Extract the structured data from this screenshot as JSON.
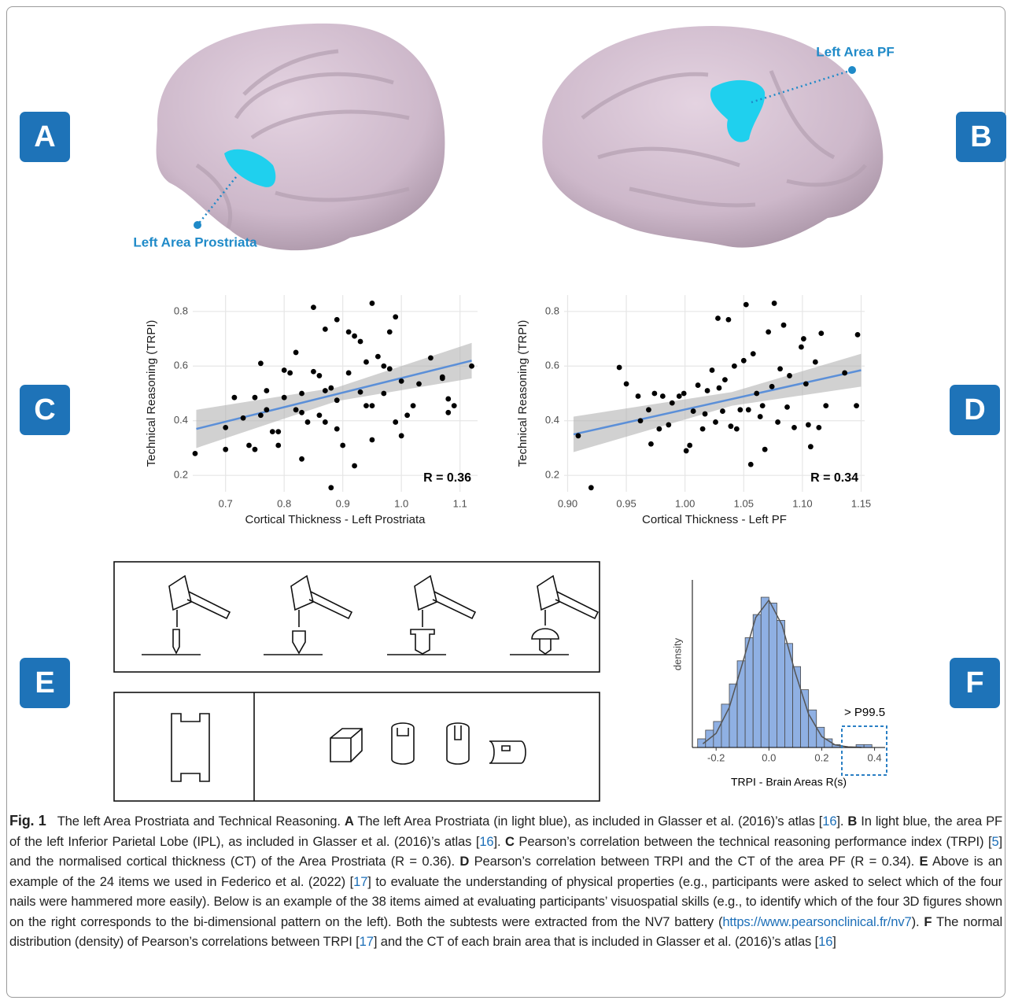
{
  "panel_labels": [
    "A",
    "B",
    "C",
    "D",
    "E",
    "F"
  ],
  "brain_labels": {
    "prostriata": "Left Area Prostriata",
    "pf": "Left Area PF"
  },
  "chart_data": [
    {
      "type": "scatter",
      "y_label": "Technical Reasoning (TRPI)",
      "x_label": "Cortical Thickness - Left Prostriata",
      "annotation": "R = 0.36",
      "xlim": [
        0.644,
        1.13
      ],
      "ylim": [
        0.14,
        0.86
      ],
      "xticks": [
        0.7,
        0.8,
        0.9,
        {
          "value": 1,
          "label": "1.0"
        },
        1.1
      ],
      "yticks": [
        0.2,
        0.4,
        0.6,
        0.8
      ],
      "grid": true,
      "color": "#000000",
      "fit_color": "#5b8fd8",
      "band_color": "#b3b3b3",
      "x": [
        0.648,
        0.7,
        0.7,
        0.715,
        0.73,
        0.74,
        0.75,
        0.75,
        0.76,
        0.76,
        0.77,
        0.77,
        0.78,
        0.79,
        0.79,
        0.8,
        0.8,
        0.81,
        0.82,
        0.82,
        0.83,
        0.83,
        0.83,
        0.84,
        0.85,
        0.85,
        0.86,
        0.86,
        0.87,
        0.87,
        0.87,
        0.88,
        0.88,
        0.89,
        0.89,
        0.89,
        0.9,
        0.91,
        0.91,
        0.92,
        0.92,
        0.93,
        0.93,
        0.94,
        0.94,
        0.95,
        0.95,
        0.95,
        0.96,
        0.97,
        0.97,
        0.98,
        0.98,
        0.99,
        0.99,
        1.0,
        1.0,
        1.01,
        1.02,
        1.03,
        1.05,
        1.07,
        1.07,
        1.08,
        1.08,
        1.09,
        1.12
      ],
      "values": [
        0.28,
        0.375,
        0.295,
        0.485,
        0.41,
        0.31,
        0.295,
        0.485,
        0.42,
        0.61,
        0.44,
        0.51,
        0.36,
        0.31,
        0.36,
        0.585,
        0.485,
        0.575,
        0.65,
        0.44,
        0.26,
        0.43,
        0.5,
        0.395,
        0.58,
        0.815,
        0.42,
        0.565,
        0.51,
        0.735,
        0.395,
        0.52,
        0.155,
        0.37,
        0.77,
        0.475,
        0.31,
        0.575,
        0.725,
        0.235,
        0.71,
        0.505,
        0.69,
        0.455,
        0.615,
        0.455,
        0.83,
        0.33,
        0.635,
        0.5,
        0.6,
        0.725,
        0.59,
        0.395,
        0.78,
        0.345,
        0.545,
        0.42,
        0.455,
        0.535,
        0.63,
        0.56,
        0.555,
        0.43,
        0.48,
        0.455,
        0.6
      ],
      "fit": {
        "x": [
          0.65,
          1.12
        ],
        "values": [
          0.37,
          0.62
        ]
      },
      "ci": {
        "x": [
          0.65,
          0.89,
          1.12
        ],
        "lower": [
          0.3,
          0.472,
          0.555
        ],
        "upper": [
          0.44,
          0.522,
          0.685
        ]
      }
    },
    {
      "type": "scatter",
      "y_label": "Technical Reasoning (TRPI)",
      "x_label": "Cortical Thickness - Left PF",
      "annotation": "R = 0.34",
      "xlim": [
        0.897,
        1.153
      ],
      "ylim": [
        0.14,
        0.86
      ],
      "xticks": [
        {
          "value": 0.9,
          "label": "0.90"
        },
        0.95,
        {
          "value": 1,
          "label": "1.00"
        },
        1.05,
        {
          "value": 1.1,
          "label": "1.10"
        },
        1.15
      ],
      "yticks": [
        0.2,
        0.4,
        0.6,
        0.8
      ],
      "grid": true,
      "color": "#000000",
      "fit_color": "#5b8fd8",
      "band_color": "#b3b3b3",
      "x": [
        0.909,
        0.92,
        0.944,
        0.95,
        0.96,
        0.962,
        0.969,
        0.971,
        0.974,
        0.978,
        0.981,
        0.986,
        0.989,
        0.995,
        0.999,
        1.001,
        1.004,
        1.007,
        1.011,
        1.015,
        1.017,
        1.019,
        1.023,
        1.026,
        1.028,
        1.029,
        1.032,
        1.034,
        1.037,
        1.039,
        1.042,
        1.044,
        1.047,
        1.05,
        1.052,
        1.054,
        1.056,
        1.058,
        1.061,
        1.064,
        1.066,
        1.068,
        1.071,
        1.074,
        1.076,
        1.079,
        1.081,
        1.084,
        1.087,
        1.089,
        1.093,
        1.099,
        1.101,
        1.103,
        1.105,
        1.107,
        1.111,
        1.114,
        1.116,
        1.12,
        1.136,
        1.146,
        1.147
      ],
      "values": [
        0.345,
        0.155,
        0.595,
        0.535,
        0.49,
        0.4,
        0.44,
        0.315,
        0.5,
        0.37,
        0.49,
        0.385,
        0.465,
        0.49,
        0.5,
        0.29,
        0.31,
        0.435,
        0.53,
        0.37,
        0.425,
        0.51,
        0.585,
        0.395,
        0.775,
        0.52,
        0.435,
        0.55,
        0.77,
        0.38,
        0.6,
        0.37,
        0.44,
        0.62,
        0.825,
        0.44,
        0.24,
        0.645,
        0.5,
        0.415,
        0.455,
        0.295,
        0.725,
        0.525,
        0.83,
        0.395,
        0.59,
        0.75,
        0.45,
        0.565,
        0.375,
        0.67,
        0.7,
        0.535,
        0.385,
        0.305,
        0.615,
        0.375,
        0.72,
        0.455,
        0.575,
        0.455,
        0.715
      ],
      "fit": {
        "x": [
          0.905,
          1.15
        ],
        "values": [
          0.35,
          0.585
        ]
      },
      "ci": {
        "x": [
          0.905,
          1.04,
          1.15
        ],
        "lower": [
          0.285,
          0.455,
          0.525
        ],
        "upper": [
          0.415,
          0.505,
          0.645
        ]
      }
    },
    {
      "type": "histogram",
      "y_label": "density",
      "x_label": "TRPI - Brain Areas R(s)",
      "annotation": "> P99.5",
      "xlim": [
        -0.29,
        0.44
      ],
      "ylim": [
        0,
        58
      ],
      "xticks": [
        -0.2,
        {
          "value": 0,
          "label": "0.0"
        },
        0.2,
        0.4
      ],
      "color": "#8fb0e3",
      "edge_color": "#4a4a4a",
      "curve_color": "#555555",
      "bins": [
        -0.27,
        -0.24,
        -0.21,
        -0.18,
        -0.15,
        -0.12,
        -0.09,
        -0.06,
        -0.03,
        0,
        0.03,
        0.06,
        0.09,
        0.12,
        0.15,
        0.18,
        0.21,
        0.24,
        0.27,
        0.3,
        0.33,
        0.36,
        0.39,
        0.42
      ],
      "values": [
        3,
        6,
        9,
        15,
        22,
        30,
        38,
        46,
        52,
        50,
        44,
        36,
        28,
        20,
        13,
        7,
        3,
        1,
        0,
        0,
        1,
        1,
        0
      ],
      "curve": {
        "x": [
          -0.25,
          -0.2,
          -0.15,
          -0.1,
          -0.05,
          0,
          0.05,
          0.1,
          0.15,
          0.2,
          0.25,
          0.3,
          0.35
        ],
        "values": [
          1.3,
          4.9,
          13.9,
          29.2,
          45,
          51,
          42.3,
          25.8,
          11.6,
          3.8,
          0.9,
          0.2,
          0.05
        ]
      }
    }
  ],
  "caption": {
    "runs": [
      {
        "text": "Fig. 1",
        "style": "label"
      },
      {
        "text": "The left Area Prostriata and Technical Reasoning. "
      },
      {
        "text": "A",
        "style": "bold"
      },
      {
        "text": " The left Area Prostriata (in light blue), as included in Glasser et al. (2016)’s atlas ["
      },
      {
        "text": "16",
        "style": "link"
      },
      {
        "text": "]. "
      },
      {
        "text": "B",
        "style": "bold"
      },
      {
        "text": " In light blue, the area PF of the left Inferior Parietal Lobe (IPL), as included in Glasser et al. (2016)’s atlas ["
      },
      {
        "text": "16",
        "style": "link"
      },
      {
        "text": "]. "
      },
      {
        "text": "C",
        "style": "bold"
      },
      {
        "text": " Pearson’s correlation between the technical reasoning performance index (TRPI) ["
      },
      {
        "text": "5",
        "style": "link"
      },
      {
        "text": "] and the normalised cortical thickness (CT) of the Area Prostriata (R = 0.36). "
      },
      {
        "text": "D",
        "style": "bold"
      },
      {
        "text": " Pearson’s correlation between TRPI and the CT of the area PF (R = 0.34). "
      },
      {
        "text": "E",
        "style": "bold"
      },
      {
        "text": " Above is an example of the 24 items we used in Federico et al. (2022) ["
      },
      {
        "text": "17",
        "style": "link"
      },
      {
        "text": "] to evaluate the understanding of physical properties (e.g., participants were asked to select which of the four nails were hammered more easily). Below is an example of the 38 items aimed at evaluating participants’ visuospatial skills (e.g., to identify which of the four 3D figures shown on the right corresponds to the bi-dimensional pattern on the left). Both the subtests were extracted from the NV7 battery ("
      },
      {
        "text": "https://www.pearsonclinical.fr/nv7",
        "style": "link"
      },
      {
        "text": "). "
      },
      {
        "text": "F",
        "style": "bold"
      },
      {
        "text": " The normal distribution (density) of Pearson’s correlations between TRPI ["
      },
      {
        "text": "17",
        "style": "link"
      },
      {
        "text": "] and the CT of each brain area that is included in Glasser et al. (2016)’s atlas ["
      },
      {
        "text": "16",
        "style": "link"
      },
      {
        "text": "]"
      }
    ]
  }
}
